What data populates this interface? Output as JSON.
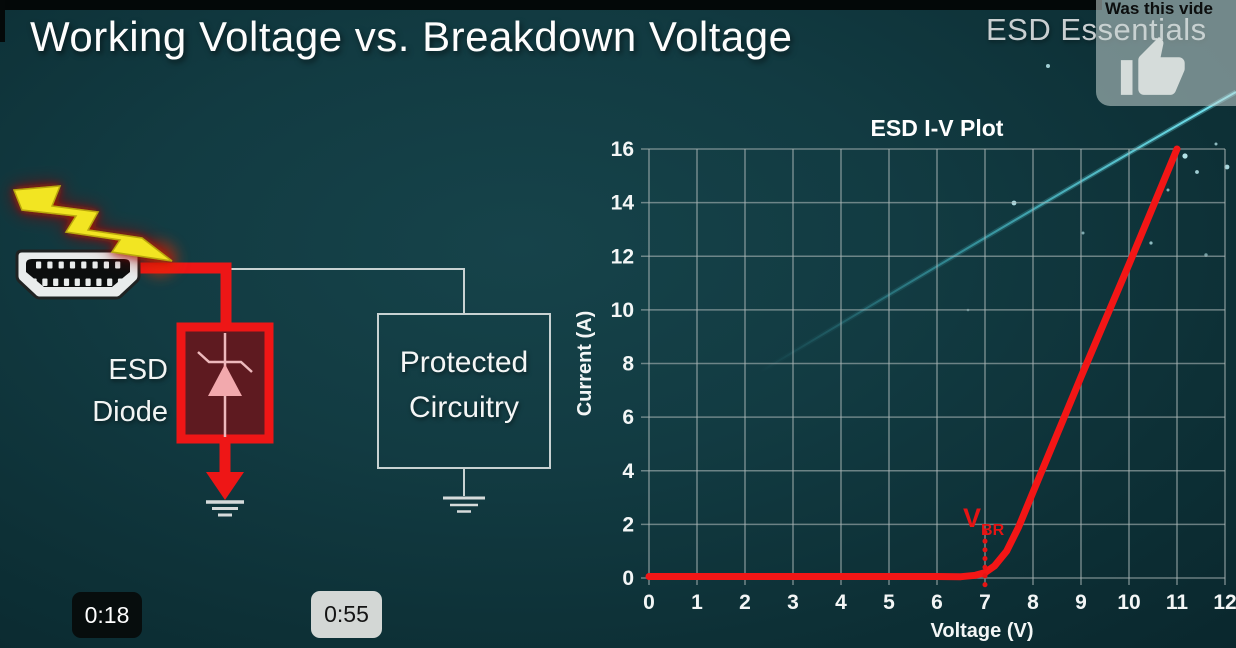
{
  "slide": {
    "title": "Working Voltage vs. Breakdown Voltage",
    "brand": "ESD Essentials"
  },
  "like_prompt": {
    "text": "Was this vide",
    "icon": "thumbs-up-icon"
  },
  "circuit": {
    "diode_label_line1": "ESD",
    "diode_label_line2": "Diode",
    "protected_label_line1": "Protected",
    "protected_label_line2": "Circuitry",
    "wire_color": "#ee1616",
    "bolt_color": "#f2e522",
    "symbol_color": "#f2a9ad"
  },
  "player": {
    "timestamp_left": "0:18",
    "timestamp_right": "0:55"
  },
  "colors": {
    "background_teal": "#123b42",
    "accent_red": "#f31616",
    "annotation_red": "#e61414",
    "grid_gray": "rgba(170,182,182,0.6)",
    "streak_cyan": "#54dbe8"
  },
  "chart_data": {
    "type": "line",
    "title": "ESD I-V Plot",
    "xlabel": "Voltage (V)",
    "ylabel": "Current (A)",
    "xlim": [
      0,
      12
    ],
    "ylim": [
      0,
      16
    ],
    "xticks": [
      0,
      1,
      2,
      3,
      4,
      5,
      6,
      7,
      8,
      9,
      10,
      11,
      12
    ],
    "yticks": [
      0,
      2,
      4,
      6,
      8,
      10,
      12,
      14,
      16
    ],
    "grid": true,
    "legend": false,
    "series": [
      {
        "name": "ESD diode I-V curve",
        "color": "#f31616",
        "points": [
          [
            0,
            0
          ],
          [
            1,
            0
          ],
          [
            2,
            0
          ],
          [
            3,
            0
          ],
          [
            4,
            0
          ],
          [
            5,
            0
          ],
          [
            6,
            0
          ],
          [
            6.5,
            0.05
          ],
          [
            6.8,
            0.1
          ],
          [
            7.0,
            0.2
          ],
          [
            7.2,
            0.45
          ],
          [
            7.45,
            1.0
          ],
          [
            7.7,
            1.9
          ],
          [
            8.0,
            3.2
          ],
          [
            9.0,
            7.5
          ],
          [
            10.0,
            11.7
          ],
          [
            11.0,
            16.0
          ]
        ]
      }
    ],
    "annotations": [
      {
        "text": "V",
        "sub": "BR",
        "x": 7.0,
        "label_y": 1.9,
        "line_from_y": 1.7,
        "style": "dotted-vertical",
        "color": "#e61414"
      }
    ]
  }
}
